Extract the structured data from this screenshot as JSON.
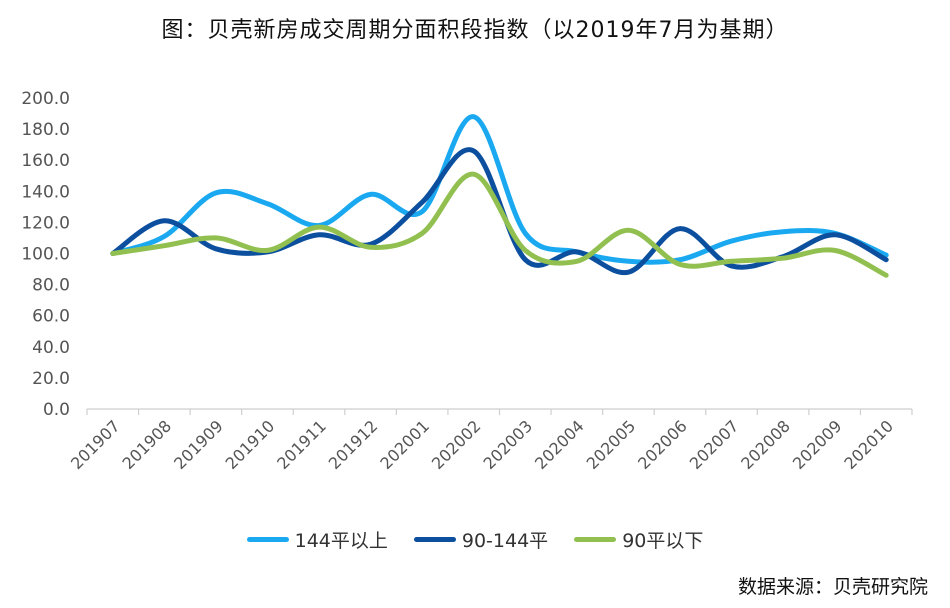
{
  "chart_data": {
    "type": "line",
    "title": "图：贝壳新房成交周期分面积段指数（以2019年7月为基期）",
    "categories": [
      "201907",
      "201908",
      "201909",
      "201910",
      "201911",
      "201912",
      "202001",
      "202002",
      "202003",
      "202004",
      "202005",
      "202006",
      "202007",
      "202008",
      "202009",
      "202010"
    ],
    "series": [
      {
        "name": "144平以上",
        "color": "#1aa9f0",
        "values": [
          100,
          111,
          139,
          132,
          118,
          138,
          127,
          188,
          113,
          101,
          95,
          96,
          108,
          114,
          113,
          99
        ]
      },
      {
        "name": "90-144平",
        "color": "#0b4f9e",
        "values": [
          100,
          121,
          103,
          101,
          112,
          106,
          133,
          166,
          96,
          101,
          88,
          116,
          92,
          98,
          112,
          96
        ]
      },
      {
        "name": "90平以下",
        "color": "#92c050",
        "values": [
          100,
          105,
          110,
          102,
          117,
          104,
          113,
          151,
          102,
          95,
          115,
          93,
          95,
          97,
          102,
          86
        ]
      }
    ],
    "yticks": [
      "0.0",
      "20.0",
      "40.0",
      "60.0",
      "80.0",
      "100.0",
      "120.0",
      "140.0",
      "160.0",
      "180.0",
      "200.0"
    ],
    "ylim": [
      0,
      200
    ],
    "grid": false,
    "legend_position": "bottom"
  },
  "source": "数据来源：贝壳研究院"
}
